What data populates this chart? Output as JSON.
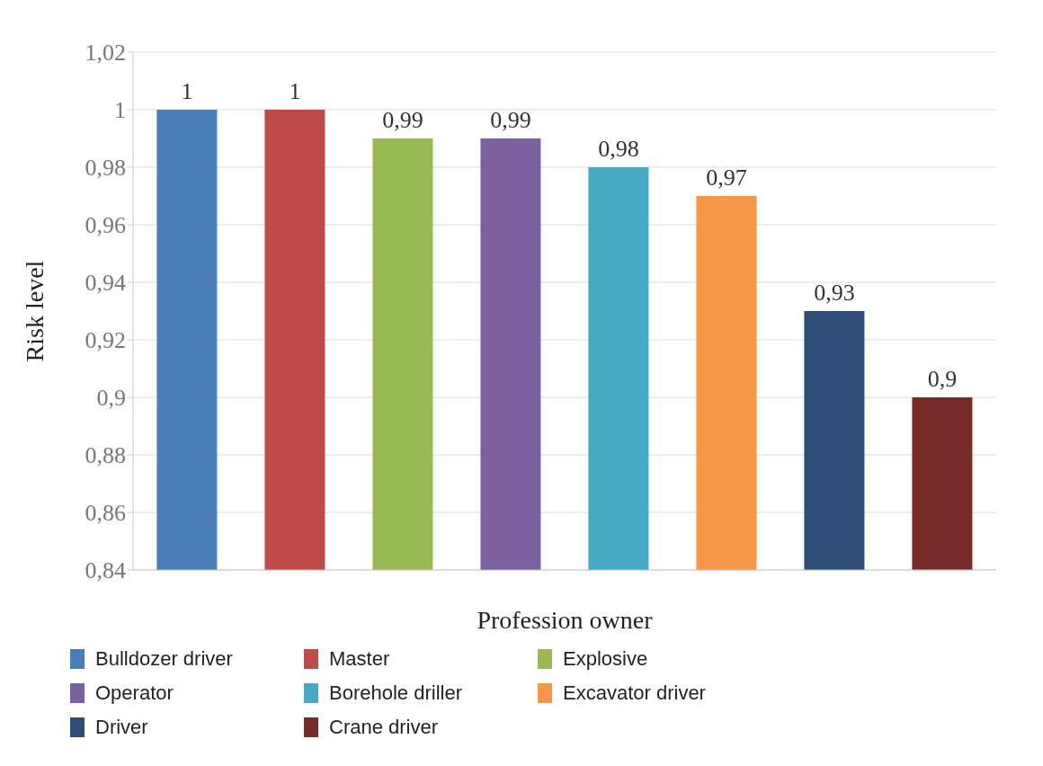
{
  "chart_data": {
    "type": "bar",
    "xlabel": "Profession owner",
    "ylabel": "Risk level",
    "categories": [
      null,
      null,
      null,
      null,
      null,
      null,
      null,
      null
    ],
    "stacked": true,
    "ylim": [
      0.84,
      1.02
    ],
    "yticks": [
      {
        "value": 0.84,
        "label": "0,84"
      },
      {
        "value": 0.86,
        "label": "0,86"
      },
      {
        "value": 0.88,
        "label": "0,88"
      },
      {
        "value": 0.9,
        "label": "0,9"
      },
      {
        "value": 0.92,
        "label": "0,92"
      },
      {
        "value": 0.94,
        "label": "0,94"
      },
      {
        "value": 0.96,
        "label": "0,96"
      },
      {
        "value": 0.98,
        "label": "0,98"
      },
      {
        "value": 1,
        "label": "1"
      },
      {
        "value": 1.02,
        "label": "1,02"
      }
    ],
    "grid": "y",
    "legend": "bottom",
    "tick_labels": "y",
    "series": [
      {
        "name": "Bulldozer driver",
        "color": "#4a7ebb",
        "values": [
          1,
          null,
          null,
          null,
          null,
          null,
          null,
          null
        ],
        "value_labels": [
          "1",
          null,
          null,
          null,
          null,
          null,
          null,
          null
        ]
      },
      {
        "name": "Master",
        "color": "#be4b48",
        "values": [
          null,
          1,
          null,
          null,
          null,
          null,
          null,
          null
        ],
        "value_labels": [
          null,
          "1",
          null,
          null,
          null,
          null,
          null,
          null
        ]
      },
      {
        "name": "Explosive",
        "color": "#98b954",
        "values": [
          null,
          null,
          0.99,
          null,
          null,
          null,
          null,
          null
        ],
        "value_labels": [
          null,
          null,
          "0,99",
          null,
          null,
          null,
          null,
          null
        ]
      },
      {
        "name": "Operator",
        "color": "#7d60a0",
        "values": [
          null,
          null,
          null,
          0.99,
          null,
          null,
          null,
          null
        ],
        "value_labels": [
          null,
          null,
          null,
          "0,99",
          null,
          null,
          null,
          null
        ]
      },
      {
        "name": "Borehole driller",
        "color": "#46aac5",
        "values": [
          null,
          null,
          null,
          null,
          0.98,
          null,
          null,
          null
        ],
        "value_labels": [
          null,
          null,
          null,
          null,
          "0,98",
          null,
          null,
          null
        ]
      },
      {
        "name": "Excavator driver",
        "color": "#f79646",
        "values": [
          null,
          null,
          null,
          null,
          null,
          0.97,
          null,
          null
        ],
        "value_labels": [
          null,
          null,
          null,
          null,
          null,
          "0,97",
          null,
          null
        ]
      },
      {
        "name": "Driver",
        "color": "#2c4d75",
        "values": [
          null,
          null,
          null,
          null,
          null,
          null,
          0.93,
          null
        ],
        "value_labels": [
          null,
          null,
          null,
          null,
          null,
          null,
          "0,93",
          null
        ]
      },
      {
        "name": "Crane driver",
        "color": "#772c2a",
        "values": [
          null,
          null,
          null,
          null,
          null,
          null,
          null,
          0.9
        ],
        "value_labels": [
          null,
          null,
          null,
          null,
          null,
          null,
          null,
          "0,9"
        ]
      }
    ]
  }
}
